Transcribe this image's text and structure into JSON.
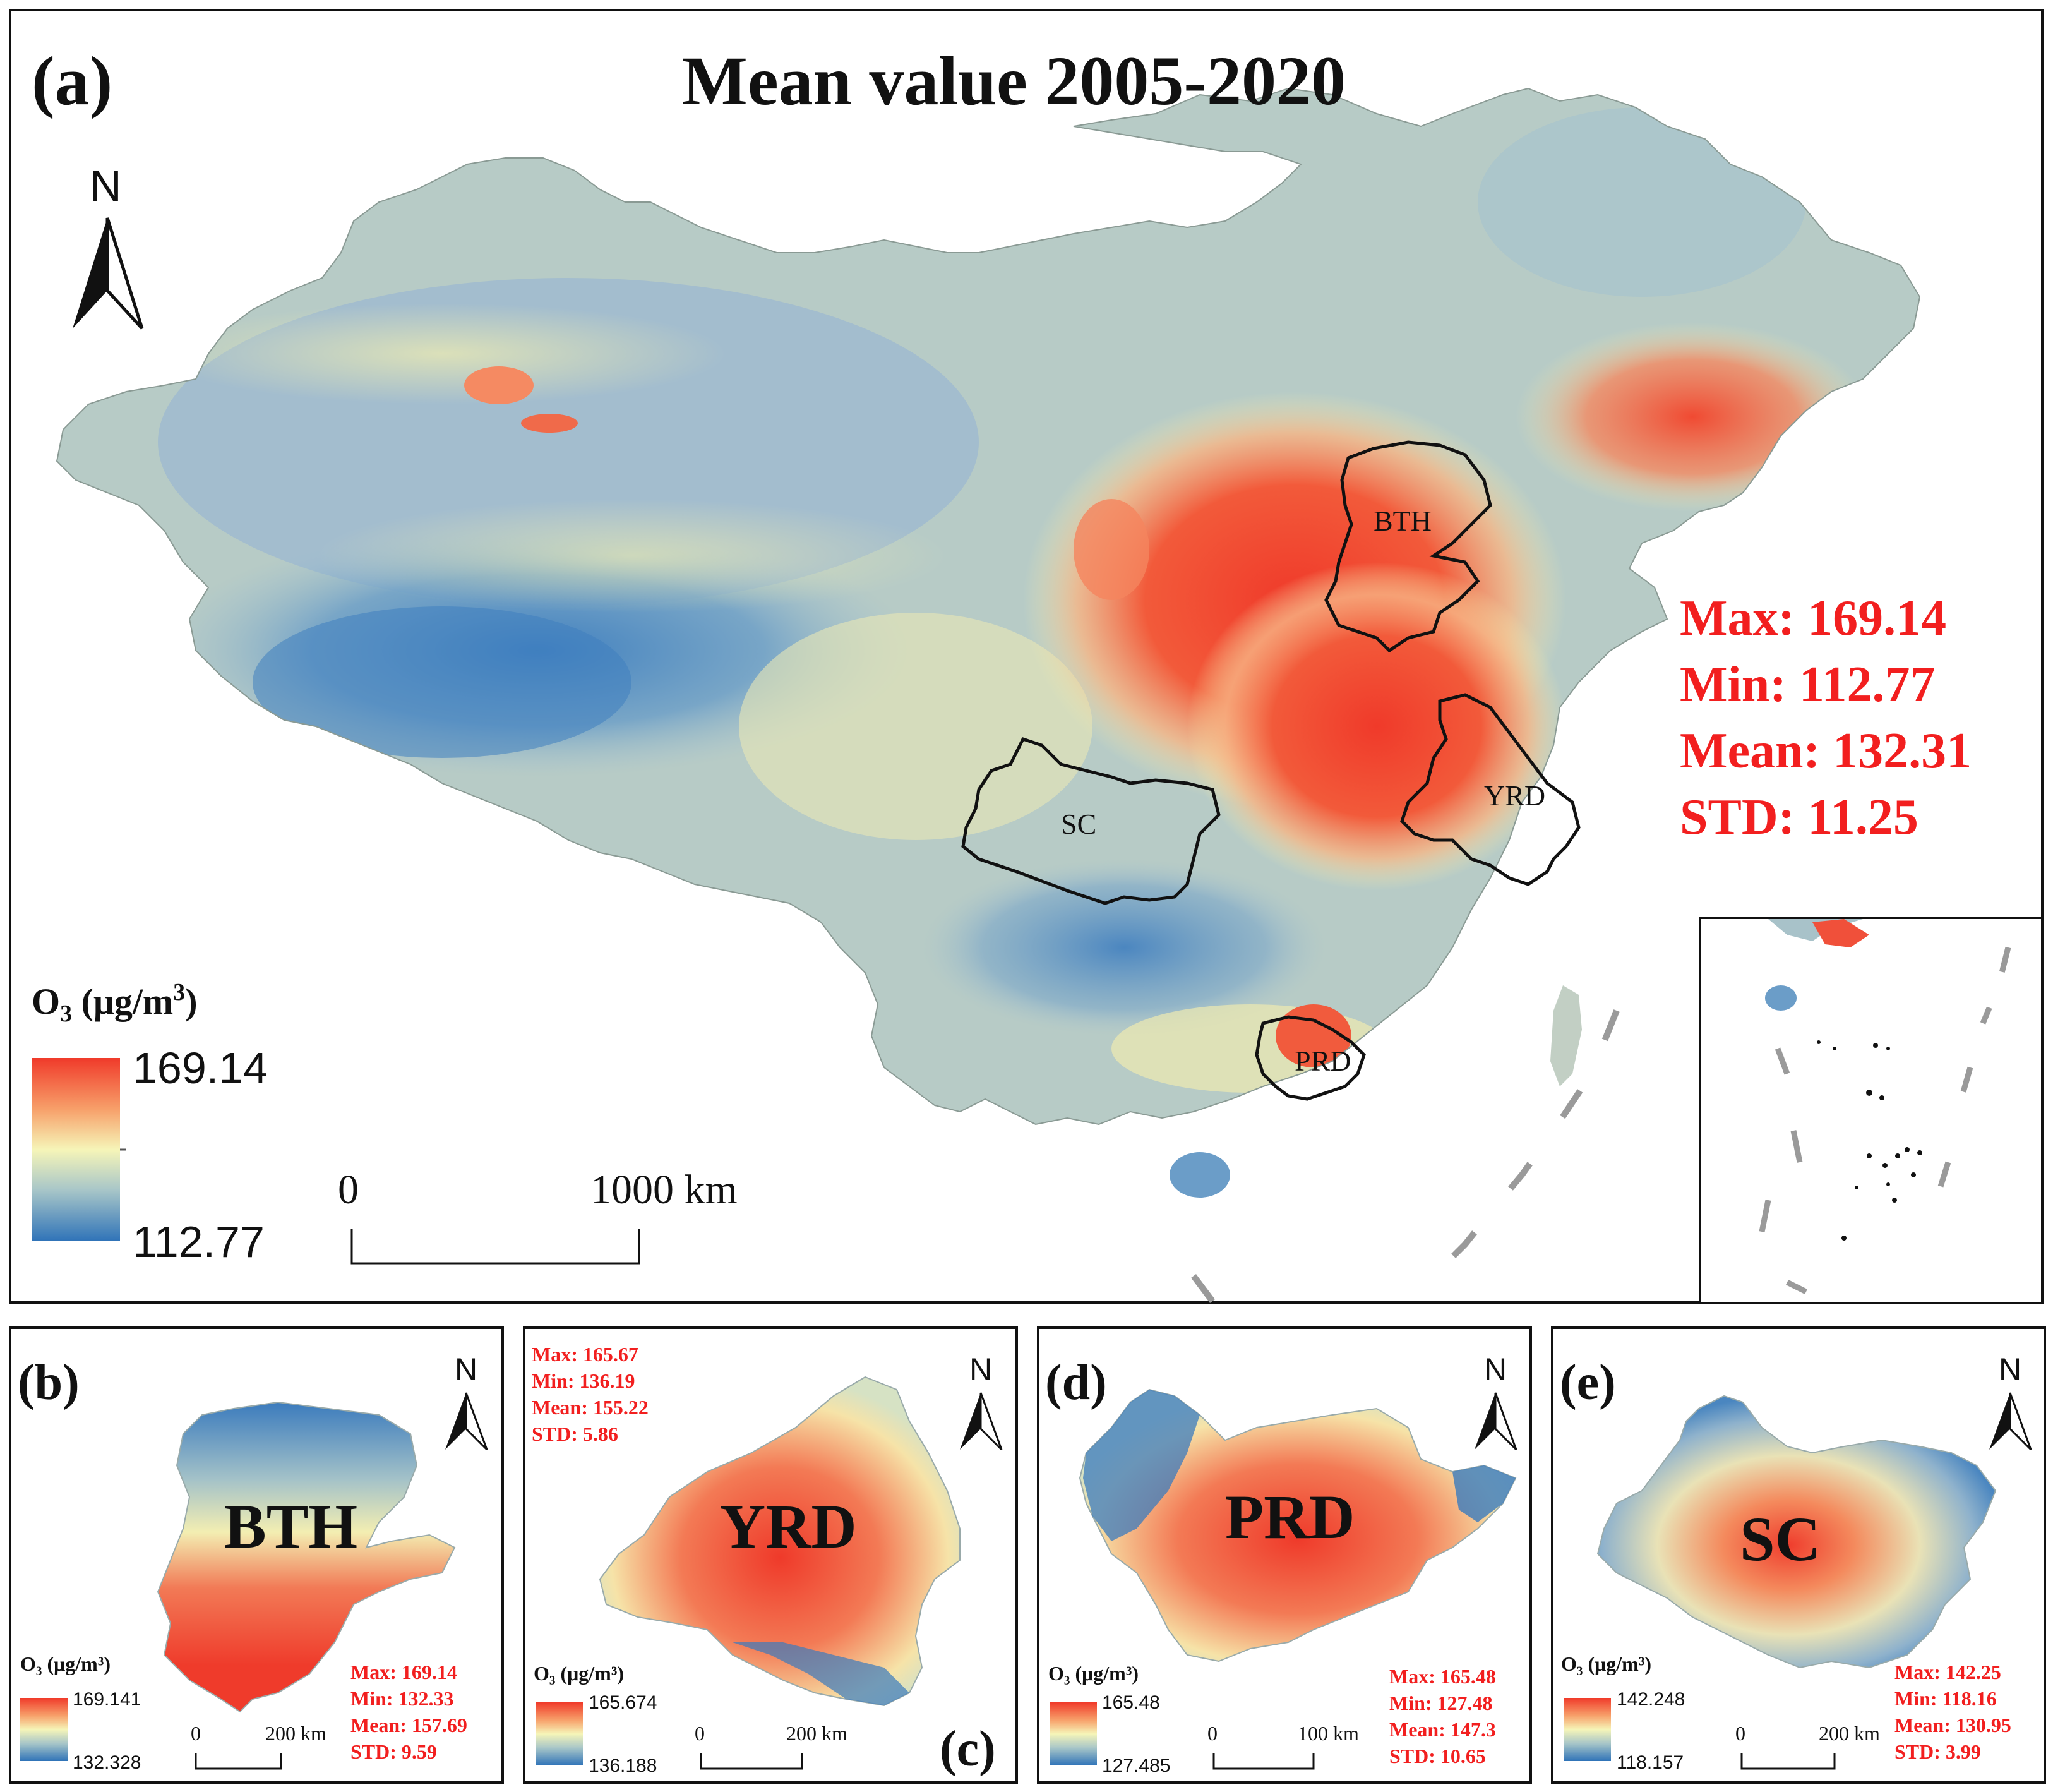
{
  "main": {
    "panel_label": "(a)",
    "title": "Mean value 2005-2020",
    "north_label": "N",
    "regions": [
      "BTH",
      "YRD",
      "SC",
      "PRD"
    ],
    "stats": {
      "max": "Max: 169.14",
      "min": "Min: 112.77",
      "mean": "Mean: 132.31",
      "std": "STD: 11.25"
    },
    "legend": {
      "title_prefix": "O",
      "title_sub": "3",
      "title_unit": " (μg/m",
      "title_sup": "3",
      "title_close": ")",
      "max": "169.14",
      "min": "112.77"
    },
    "scale": {
      "start": "0",
      "end": "1000 km"
    }
  },
  "subpanels": [
    {
      "label": "(b)",
      "region": "BTH",
      "north": "N",
      "legend_title": "O₃ (μg/m³)",
      "legend_max": "169.141",
      "legend_min": "132.328",
      "stats": [
        "Max: 169.14",
        "Min: 132.33",
        "Mean: 157.69",
        "STD: 9.59"
      ],
      "scale_start": "0",
      "scale_end": "200  km"
    },
    {
      "label": "(c)",
      "region": "YRD",
      "north": "N",
      "legend_title": "O₃ (μg/m³)",
      "legend_max": "165.674",
      "legend_min": "136.188",
      "stats": [
        "Max: 165.67",
        "Min: 136.19",
        "Mean: 155.22",
        "STD: 5.86"
      ],
      "scale_start": "0",
      "scale_end": "200 km"
    },
    {
      "label": "(d)",
      "region": "PRD",
      "north": "N",
      "legend_title": "O₃ (μg/m³)",
      "legend_max": "165.48",
      "legend_min": "127.485",
      "stats": [
        "Max: 165.48",
        "Min: 127.48",
        "Mean: 147.3",
        "STD: 10.65"
      ],
      "scale_start": "0",
      "scale_end": "100 km"
    },
    {
      "label": "(e)",
      "region": "SC",
      "north": "N",
      "legend_title": "O₃ (μg/m³)",
      "legend_max": "142.248",
      "legend_min": "118.157",
      "stats": [
        "Max: 142.25",
        "Min: 118.16",
        "Mean: 130.95",
        "STD: 3.99"
      ],
      "scale_start": "0",
      "scale_end": "200 km"
    }
  ],
  "colors": {
    "high": "#f03a2a",
    "mid": "#f6f5b8",
    "low": "#2f73b8",
    "stats_text": "#f21f1f"
  }
}
